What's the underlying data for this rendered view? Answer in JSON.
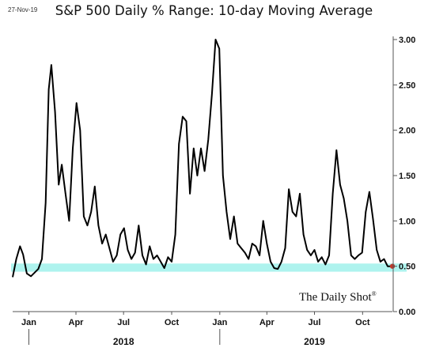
{
  "header": {
    "date": "27-Nov-19",
    "title": "S&P 500 Daily % Range: 10-day Moving Average"
  },
  "brand": {
    "name": "The Daily Shot",
    "mark": "®"
  },
  "colors": {
    "line": "#000000",
    "band": "#aef3ee",
    "endpoint": "#c0392b",
    "axis": "#555555"
  },
  "chart_data": {
    "type": "line",
    "title": "S&P 500 Daily % Range: 10-day Moving Average",
    "xlabel": "",
    "ylabel": "",
    "ylim": [
      0,
      3.0
    ],
    "yticks": [
      0.0,
      0.5,
      1.0,
      1.5,
      2.0,
      2.5,
      3.0
    ],
    "ytick_labels": [
      "0.00",
      "0.50",
      "1.00",
      "1.50",
      "2.00",
      "2.50",
      "3.00"
    ],
    "xlim": [
      "2017-12-01",
      "2019-11-27"
    ],
    "month_ticks": [
      {
        "date": "2018-01-01",
        "label": "Jan"
      },
      {
        "date": "2018-04-01",
        "label": "Apr"
      },
      {
        "date": "2018-07-01",
        "label": "Jul"
      },
      {
        "date": "2018-10-01",
        "label": "Oct"
      },
      {
        "date": "2019-01-01",
        "label": "Jan"
      },
      {
        "date": "2019-04-01",
        "label": "Apr"
      },
      {
        "date": "2019-07-01",
        "label": "Jul"
      },
      {
        "date": "2019-10-01",
        "label": "Oct"
      }
    ],
    "year_labels": [
      {
        "date": "2018-07-01",
        "label": "2018"
      },
      {
        "date": "2019-07-01",
        "label": "2019"
      }
    ],
    "band": {
      "low": 0.44,
      "high": 0.53
    },
    "grid": false,
    "legend": "none",
    "series": [
      {
        "points": [
          [
            "2017-12-01",
            0.38
          ],
          [
            "2017-12-08",
            0.58
          ],
          [
            "2017-12-15",
            0.72
          ],
          [
            "2017-12-21",
            0.63
          ],
          [
            "2017-12-28",
            0.42
          ],
          [
            "2018-01-05",
            0.39
          ],
          [
            "2018-01-12",
            0.43
          ],
          [
            "2018-01-19",
            0.47
          ],
          [
            "2018-01-26",
            0.58
          ],
          [
            "2018-02-02",
            1.2
          ],
          [
            "2018-02-08",
            2.45
          ],
          [
            "2018-02-13",
            2.72
          ],
          [
            "2018-02-20",
            2.2
          ],
          [
            "2018-02-27",
            1.4
          ],
          [
            "2018-03-05",
            1.62
          ],
          [
            "2018-03-12",
            1.3
          ],
          [
            "2018-03-19",
            1.0
          ],
          [
            "2018-03-26",
            1.8
          ],
          [
            "2018-04-02",
            2.3
          ],
          [
            "2018-04-09",
            2.0
          ],
          [
            "2018-04-16",
            1.05
          ],
          [
            "2018-04-23",
            0.95
          ],
          [
            "2018-04-30",
            1.1
          ],
          [
            "2018-05-07",
            1.38
          ],
          [
            "2018-05-14",
            0.95
          ],
          [
            "2018-05-21",
            0.75
          ],
          [
            "2018-05-28",
            0.85
          ],
          [
            "2018-06-04",
            0.7
          ],
          [
            "2018-06-11",
            0.55
          ],
          [
            "2018-06-18",
            0.62
          ],
          [
            "2018-06-25",
            0.85
          ],
          [
            "2018-07-02",
            0.92
          ],
          [
            "2018-07-09",
            0.68
          ],
          [
            "2018-07-16",
            0.58
          ],
          [
            "2018-07-23",
            0.65
          ],
          [
            "2018-07-30",
            0.95
          ],
          [
            "2018-08-06",
            0.62
          ],
          [
            "2018-08-13",
            0.52
          ],
          [
            "2018-08-20",
            0.72
          ],
          [
            "2018-08-27",
            0.58
          ],
          [
            "2018-09-03",
            0.62
          ],
          [
            "2018-09-10",
            0.55
          ],
          [
            "2018-09-17",
            0.48
          ],
          [
            "2018-09-24",
            0.6
          ],
          [
            "2018-10-01",
            0.55
          ],
          [
            "2018-10-08",
            0.85
          ],
          [
            "2018-10-15",
            1.85
          ],
          [
            "2018-10-22",
            2.15
          ],
          [
            "2018-10-29",
            2.1
          ],
          [
            "2018-11-05",
            1.3
          ],
          [
            "2018-11-12",
            1.8
          ],
          [
            "2018-11-19",
            1.5
          ],
          [
            "2018-11-26",
            1.8
          ],
          [
            "2018-12-03",
            1.55
          ],
          [
            "2018-12-10",
            1.9
          ],
          [
            "2018-12-17",
            2.4
          ],
          [
            "2018-12-24",
            3.0
          ],
          [
            "2018-12-31",
            2.9
          ],
          [
            "2019-01-07",
            1.5
          ],
          [
            "2019-01-14",
            1.1
          ],
          [
            "2019-01-21",
            0.8
          ],
          [
            "2019-01-28",
            1.05
          ],
          [
            "2019-02-04",
            0.75
          ],
          [
            "2019-02-11",
            0.7
          ],
          [
            "2019-02-18",
            0.65
          ],
          [
            "2019-02-25",
            0.58
          ],
          [
            "2019-03-04",
            0.75
          ],
          [
            "2019-03-11",
            0.72
          ],
          [
            "2019-03-18",
            0.62
          ],
          [
            "2019-03-25",
            1.0
          ],
          [
            "2019-04-01",
            0.75
          ],
          [
            "2019-04-08",
            0.55
          ],
          [
            "2019-04-15",
            0.48
          ],
          [
            "2019-04-22",
            0.47
          ],
          [
            "2019-04-29",
            0.55
          ],
          [
            "2019-05-06",
            0.7
          ],
          [
            "2019-05-13",
            1.35
          ],
          [
            "2019-05-20",
            1.1
          ],
          [
            "2019-05-27",
            1.05
          ],
          [
            "2019-06-03",
            1.3
          ],
          [
            "2019-06-10",
            0.85
          ],
          [
            "2019-06-17",
            0.68
          ],
          [
            "2019-06-24",
            0.62
          ],
          [
            "2019-07-01",
            0.68
          ],
          [
            "2019-07-08",
            0.55
          ],
          [
            "2019-07-15",
            0.6
          ],
          [
            "2019-07-22",
            0.52
          ],
          [
            "2019-07-29",
            0.62
          ],
          [
            "2019-08-05",
            1.3
          ],
          [
            "2019-08-12",
            1.78
          ],
          [
            "2019-08-19",
            1.4
          ],
          [
            "2019-08-26",
            1.25
          ],
          [
            "2019-09-02",
            1.0
          ],
          [
            "2019-09-09",
            0.62
          ],
          [
            "2019-09-16",
            0.58
          ],
          [
            "2019-09-23",
            0.62
          ],
          [
            "2019-09-30",
            0.65
          ],
          [
            "2019-10-07",
            1.1
          ],
          [
            "2019-10-14",
            1.32
          ],
          [
            "2019-10-21",
            1.02
          ],
          [
            "2019-10-28",
            0.68
          ],
          [
            "2019-11-04",
            0.55
          ],
          [
            "2019-11-11",
            0.58
          ],
          [
            "2019-11-18",
            0.5
          ],
          [
            "2019-11-27",
            0.5
          ]
        ]
      }
    ]
  }
}
